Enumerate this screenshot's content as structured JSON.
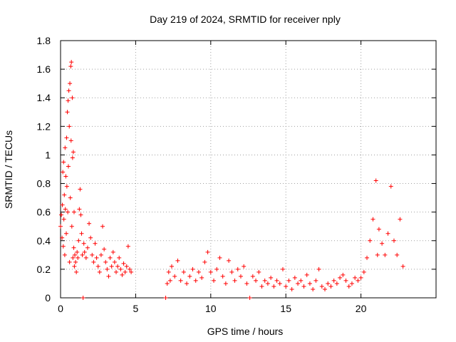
{
  "chart_data": {
    "type": "scatter",
    "title": "Day 219 of 2024, SRMTID for receiver nply",
    "xlabel": "GPS time / hours",
    "ylabel": "SRMTID / TECUs",
    "xlim": [
      0,
      25
    ],
    "ylim": [
      0,
      1.8
    ],
    "xticks": [
      0,
      5,
      10,
      15,
      20
    ],
    "yticks": [
      0,
      0.2,
      0.4,
      0.6,
      0.8,
      1,
      1.2,
      1.4,
      1.6,
      1.8
    ],
    "xtick_labels": [
      "0",
      "5",
      "10",
      "15",
      "20"
    ],
    "ytick_labels": [
      "0",
      "0.2",
      "0.4",
      "0.6",
      "0.8",
      "1",
      "1.2",
      "1.4",
      "1.6",
      "1.8"
    ],
    "grid": true,
    "marker": "plus",
    "color": "#ff0000",
    "series": [
      {
        "name": "SRMTID",
        "points": [
          [
            0.0,
            0.5
          ],
          [
            0.05,
            0.58
          ],
          [
            0.1,
            0.42
          ],
          [
            0.12,
            0.65
          ],
          [
            0.15,
            0.88
          ],
          [
            0.18,
            0.36
          ],
          [
            0.2,
            0.95
          ],
          [
            0.22,
            0.55
          ],
          [
            0.25,
            0.72
          ],
          [
            0.28,
            0.3
          ],
          [
            0.3,
            1.05
          ],
          [
            0.32,
            0.62
          ],
          [
            0.35,
            0.85
          ],
          [
            0.38,
            0.45
          ],
          [
            0.4,
            1.12
          ],
          [
            0.42,
            0.78
          ],
          [
            0.45,
            1.3
          ],
          [
            0.48,
            0.6
          ],
          [
            0.5,
            1.38
          ],
          [
            0.52,
            0.92
          ],
          [
            0.55,
            1.45
          ],
          [
            0.58,
            1.2
          ],
          [
            0.6,
            0.25
          ],
          [
            0.62,
            1.5
          ],
          [
            0.65,
            0.7
          ],
          [
            0.68,
            1.62
          ],
          [
            0.7,
            1.1
          ],
          [
            0.72,
            1.65
          ],
          [
            0.75,
            0.5
          ],
          [
            0.78,
            1.4
          ],
          [
            0.8,
            0.98
          ],
          [
            0.82,
            0.28
          ],
          [
            0.85,
            1.02
          ],
          [
            0.88,
            0.35
          ],
          [
            0.9,
            0.6
          ],
          [
            0.92,
            0.22
          ],
          [
            0.95,
            0.3
          ],
          [
            1.0,
            0.25
          ],
          [
            1.05,
            0.18
          ],
          [
            1.1,
            0.32
          ],
          [
            1.15,
            0.28
          ],
          [
            1.2,
            0.4
          ],
          [
            1.25,
            0.62
          ],
          [
            1.3,
            0.76
          ],
          [
            1.35,
            0.58
          ],
          [
            1.4,
            0.45
          ],
          [
            1.45,
            0.3
          ],
          [
            1.5,
            0.0
          ],
          [
            1.55,
            0.38
          ],
          [
            1.6,
            0.32
          ],
          [
            1.7,
            0.28
          ],
          [
            1.8,
            0.35
          ],
          [
            1.9,
            0.52
          ],
          [
            2.0,
            0.42
          ],
          [
            2.1,
            0.3
          ],
          [
            2.2,
            0.25
          ],
          [
            2.3,
            0.38
          ],
          [
            2.4,
            0.28
          ],
          [
            2.5,
            0.22
          ],
          [
            2.6,
            0.18
          ],
          [
            2.7,
            0.3
          ],
          [
            2.8,
            0.5
          ],
          [
            2.9,
            0.34
          ],
          [
            3.0,
            0.25
          ],
          [
            3.1,
            0.2
          ],
          [
            3.2,
            0.15
          ],
          [
            3.3,
            0.28
          ],
          [
            3.4,
            0.22
          ],
          [
            3.5,
            0.32
          ],
          [
            3.6,
            0.25
          ],
          [
            3.7,
            0.18
          ],
          [
            3.8,
            0.22
          ],
          [
            3.9,
            0.28
          ],
          [
            4.0,
            0.2
          ],
          [
            4.1,
            0.16
          ],
          [
            4.2,
            0.24
          ],
          [
            4.3,
            0.18
          ],
          [
            4.4,
            0.22
          ],
          [
            4.5,
            0.36
          ],
          [
            4.6,
            0.2
          ],
          [
            4.7,
            0.18
          ],
          [
            7.0,
            0.0
          ],
          [
            7.1,
            0.1
          ],
          [
            7.2,
            0.18
          ],
          [
            7.3,
            0.12
          ],
          [
            7.4,
            0.22
          ],
          [
            7.6,
            0.15
          ],
          [
            7.8,
            0.26
          ],
          [
            8.0,
            0.12
          ],
          [
            8.2,
            0.18
          ],
          [
            8.4,
            0.1
          ],
          [
            8.6,
            0.15
          ],
          [
            8.8,
            0.2
          ],
          [
            9.0,
            0.12
          ],
          [
            9.2,
            0.18
          ],
          [
            9.4,
            0.14
          ],
          [
            9.6,
            0.25
          ],
          [
            9.8,
            0.32
          ],
          [
            10.0,
            0.18
          ],
          [
            10.2,
            0.12
          ],
          [
            10.4,
            0.2
          ],
          [
            10.6,
            0.28
          ],
          [
            10.8,
            0.15
          ],
          [
            11.0,
            0.1
          ],
          [
            11.2,
            0.26
          ],
          [
            11.4,
            0.18
          ],
          [
            11.6,
            0.12
          ],
          [
            11.8,
            0.2
          ],
          [
            12.0,
            0.15
          ],
          [
            12.2,
            0.22
          ],
          [
            12.4,
            0.1
          ],
          [
            12.6,
            0.0
          ],
          [
            12.8,
            0.15
          ],
          [
            13.0,
            0.12
          ],
          [
            13.2,
            0.18
          ],
          [
            13.4,
            0.08
          ],
          [
            13.6,
            0.12
          ],
          [
            13.8,
            0.1
          ],
          [
            14.0,
            0.14
          ],
          [
            14.2,
            0.08
          ],
          [
            14.4,
            0.12
          ],
          [
            14.6,
            0.1
          ],
          [
            14.8,
            0.2
          ],
          [
            15.0,
            0.08
          ],
          [
            15.2,
            0.12
          ],
          [
            15.4,
            0.06
          ],
          [
            15.6,
            0.14
          ],
          [
            15.8,
            0.1
          ],
          [
            16.0,
            0.12
          ],
          [
            16.2,
            0.08
          ],
          [
            16.4,
            0.16
          ],
          [
            16.6,
            0.1
          ],
          [
            16.8,
            0.06
          ],
          [
            17.0,
            0.12
          ],
          [
            17.2,
            0.2
          ],
          [
            17.4,
            0.08
          ],
          [
            17.6,
            0.06
          ],
          [
            17.8,
            0.1
          ],
          [
            18.0,
            0.08
          ],
          [
            18.2,
            0.12
          ],
          [
            18.4,
            0.1
          ],
          [
            18.6,
            0.14
          ],
          [
            18.8,
            0.16
          ],
          [
            19.0,
            0.12
          ],
          [
            19.2,
            0.08
          ],
          [
            19.4,
            0.1
          ],
          [
            19.6,
            0.14
          ],
          [
            19.8,
            0.12
          ],
          [
            20.0,
            0.14
          ],
          [
            20.2,
            0.18
          ],
          [
            20.4,
            0.28
          ],
          [
            20.6,
            0.4
          ],
          [
            20.8,
            0.55
          ],
          [
            21.0,
            0.82
          ],
          [
            21.1,
            0.3
          ],
          [
            21.2,
            0.48
          ],
          [
            21.4,
            0.38
          ],
          [
            21.6,
            0.3
          ],
          [
            21.8,
            0.45
          ],
          [
            22.0,
            0.78
          ],
          [
            22.2,
            0.4
          ],
          [
            22.4,
            0.3
          ],
          [
            22.6,
            0.55
          ],
          [
            22.8,
            0.22
          ]
        ]
      }
    ]
  }
}
